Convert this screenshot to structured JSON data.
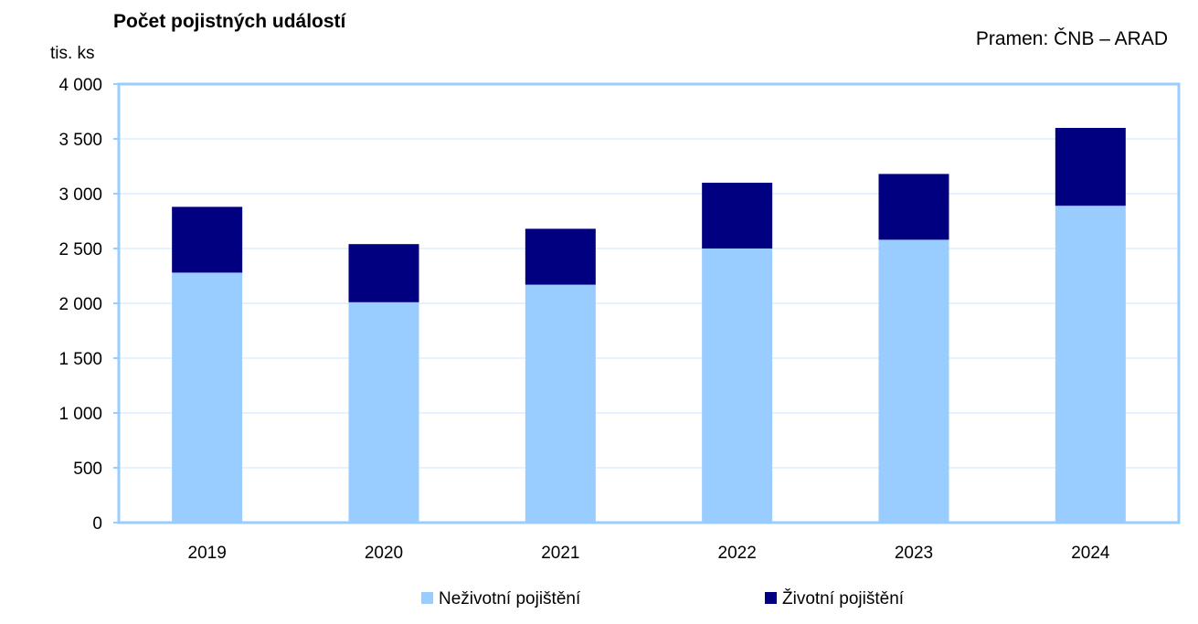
{
  "chart_data": {
    "type": "bar",
    "stacked": true,
    "title": "Počet pojistných událostí",
    "source": "Pramen: ČNB – ARAD",
    "ylabel": "tis. ks",
    "xlabel": "",
    "categories": [
      "2019",
      "2020",
      "2021",
      "2022",
      "2023",
      "2024"
    ],
    "series": [
      {
        "name": "Neživotní pojištění",
        "color": "#99ccff",
        "values": [
          2280,
          2010,
          2170,
          2500,
          2580,
          2890
        ]
      },
      {
        "name": "Životní pojištění",
        "color": "#000080",
        "values": [
          600,
          530,
          510,
          600,
          600,
          710
        ]
      }
    ],
    "ylim": [
      0,
      4000
    ],
    "yticks": [
      0,
      500,
      1000,
      1500,
      2000,
      2500,
      3000,
      3500,
      4000
    ],
    "ytick_labels": [
      "0",
      "500",
      "1 000",
      "1 500",
      "2 000",
      "2 500",
      "3 000",
      "3 500",
      "4 000"
    ],
    "grid": true,
    "legend_position": "bottom",
    "axis_color": "#99ccff",
    "grid_color": "#e6f2ff"
  }
}
